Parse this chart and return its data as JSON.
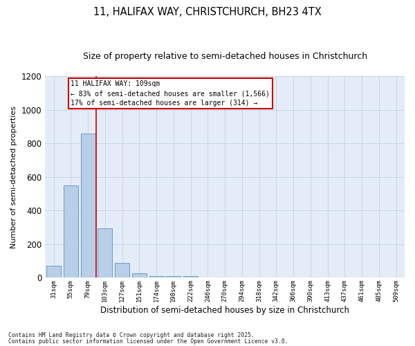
{
  "title1": "11, HALIFAX WAY, CHRISTCHURCH, BH23 4TX",
  "title2": "Size of property relative to semi-detached houses in Christchurch",
  "xlabel": "Distribution of semi-detached houses by size in Christchurch",
  "ylabel": "Number of semi-detached properties",
  "categories": [
    "31sqm",
    "55sqm",
    "79sqm",
    "103sqm",
    "127sqm",
    "151sqm",
    "174sqm",
    "198sqm",
    "222sqm",
    "246sqm",
    "270sqm",
    "294sqm",
    "318sqm",
    "342sqm",
    "366sqm",
    "390sqm",
    "413sqm",
    "437sqm",
    "461sqm",
    "485sqm",
    "509sqm"
  ],
  "values": [
    70,
    548,
    860,
    295,
    90,
    25,
    12,
    10,
    10,
    0,
    0,
    0,
    0,
    0,
    0,
    0,
    0,
    0,
    0,
    0,
    0
  ],
  "bar_color": "#b8cfe8",
  "bar_edge_color": "#5a8fc0",
  "vline_color": "#cc0000",
  "vline_pos": 2.5,
  "ylim": [
    0,
    1200
  ],
  "yticks": [
    0,
    200,
    400,
    600,
    800,
    1000,
    1200
  ],
  "annotation_title": "11 HALIFAX WAY: 109sqm",
  "annotation_line1": "← 83% of semi-detached houses are smaller (1,566)",
  "annotation_line2": "17% of semi-detached houses are larger (314) →",
  "annotation_box_color": "#cc0000",
  "footer1": "Contains HM Land Registry data © Crown copyright and database right 2025.",
  "footer2": "Contains public sector information licensed under the Open Government Licence v3.0.",
  "grid_color": "#c8d4e8",
  "bg_color": "#e4ecf7"
}
